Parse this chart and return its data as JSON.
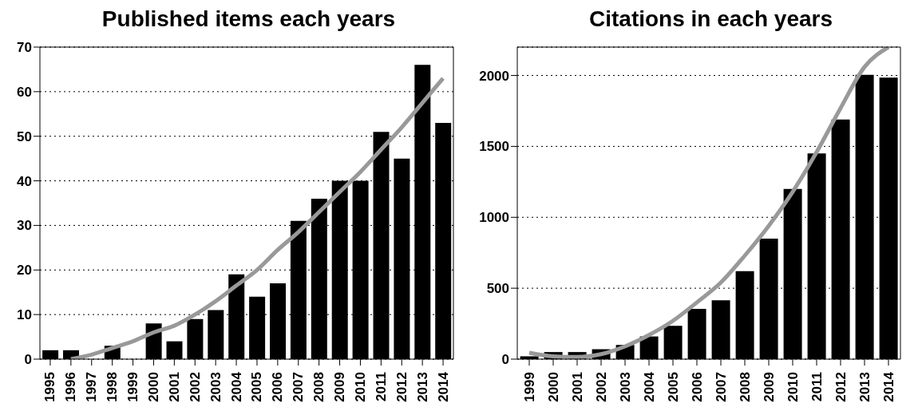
{
  "chart_data": [
    {
      "type": "bar",
      "title": "Published items each years",
      "categories": [
        "1995",
        "1996",
        "1997",
        "1998",
        "1999",
        "2000",
        "2001",
        "2002",
        "2003",
        "2004",
        "2005",
        "2006",
        "2007",
        "2008",
        "2009",
        "2010",
        "2011",
        "2012",
        "2013",
        "2014"
      ],
      "series": [
        {
          "color": "#000000",
          "values": [
            2,
            2,
            0,
            3,
            0,
            8,
            4,
            9,
            11,
            19,
            14,
            17,
            31,
            36,
            40,
            40,
            51,
            45,
            66,
            53
          ]
        },
        {
          "type": "line",
          "color": "#999999",
          "values": [
            null,
            0,
            1,
            2.5,
            4,
            6,
            7.5,
            10,
            13,
            16.5,
            20,
            24.5,
            28.5,
            33,
            37.5,
            42,
            47,
            52,
            57.5,
            63
          ]
        }
      ],
      "ylim": [
        0,
        70
      ],
      "yticks": [
        0,
        10,
        20,
        30,
        40,
        50,
        60,
        70
      ],
      "grid": "y",
      "legend": false
    },
    {
      "type": "bar",
      "title": "Citations in each years",
      "categories": [
        "1999",
        "2000",
        "2001",
        "2002",
        "2003",
        "2004",
        "2005",
        "2006",
        "2007",
        "2008",
        "2009",
        "2010",
        "2011",
        "2012",
        "2013",
        "2014"
      ],
      "series": [
        {
          "color": "#000000",
          "values": [
            20,
            50,
            50,
            70,
            100,
            160,
            235,
            355,
            415,
            620,
            850,
            1200,
            1450,
            1690,
            2005,
            1985
          ]
        },
        {
          "type": "line",
          "color": "#999999",
          "values": [
            45,
            20,
            15,
            35,
            90,
            170,
            270,
            400,
            540,
            730,
            940,
            1180,
            1460,
            1770,
            2060,
            2200
          ]
        }
      ],
      "ylim": [
        0,
        2200
      ],
      "yticks": [
        0,
        500,
        1000,
        1500,
        2000
      ],
      "grid": "y",
      "legend": false
    }
  ]
}
